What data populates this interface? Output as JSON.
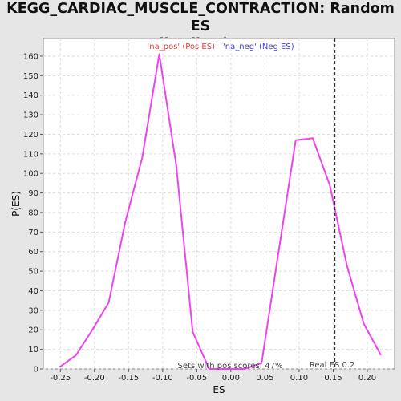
{
  "chart_data": {
    "type": "line",
    "title_lines": [
      "KEGG_CARDIAC_MUSCLE_CONTRACTION: Random ES",
      "distribution"
    ],
    "xlabel": "ES",
    "ylabel": "P(ES)",
    "xlim": [
      -0.275,
      0.24
    ],
    "ylim": [
      0,
      169
    ],
    "x_ticks": [
      -0.25,
      -0.2,
      -0.15,
      -0.1,
      -0.05,
      0.0,
      0.05,
      0.1,
      0.15,
      0.2
    ],
    "x_tick_labels": [
      "-0.25",
      "-0.20",
      "-0.15",
      "-0.10",
      "-0.05",
      "0.00",
      "0.05",
      "0.10",
      "0.15",
      "0.20"
    ],
    "y_ticks": [
      0,
      10,
      20,
      30,
      40,
      50,
      60,
      70,
      80,
      90,
      100,
      110,
      120,
      130,
      140,
      150,
      160
    ],
    "grid": true,
    "legend": [
      {
        "label": "'na_pos' (Pos ES)",
        "color": "#e04040"
      },
      {
        "label": "'na_neg' (Neg ES)",
        "color": "#4040d0"
      }
    ],
    "series": [
      {
        "color": "#ee44ee",
        "x": [
          -0.251,
          -0.227,
          -0.203,
          -0.179,
          -0.155,
          -0.13,
          -0.105,
          -0.08,
          -0.056,
          -0.032,
          -0.008,
          0.02,
          0.045,
          0.07,
          0.095,
          0.12,
          0.145,
          0.17,
          0.195,
          0.22
        ],
        "y": [
          1,
          7,
          20,
          34,
          75,
          108,
          161,
          104,
          19,
          0,
          0,
          0,
          3,
          60,
          117,
          118,
          94,
          53,
          23,
          7
        ]
      }
    ],
    "threshold": {
      "x": 0.152,
      "label": "Real ES 0.2"
    },
    "annotation": "Sets with pos scores: 47%"
  }
}
